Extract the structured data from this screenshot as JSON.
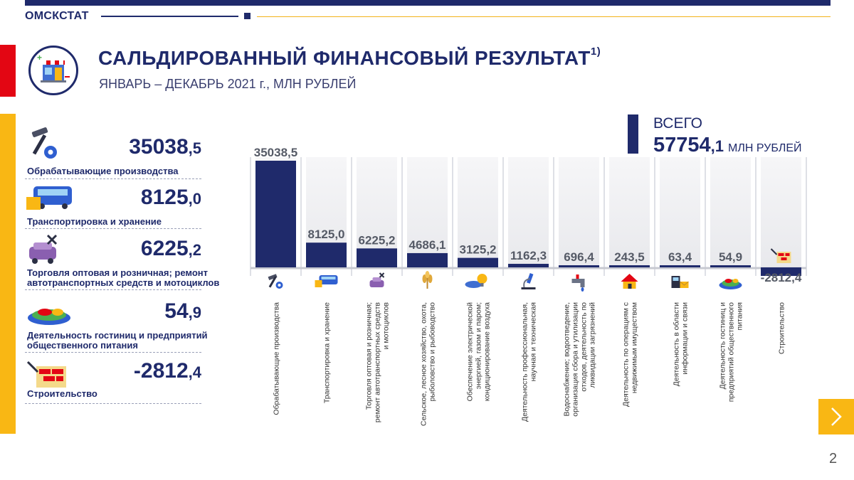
{
  "header": {
    "brand": "ОМСКСТАТ",
    "title": "САЛЬДИРОВАННЫЙ ФИНАНСОВЫЙ РЕЗУЛЬТАТ",
    "title_sup": "1)",
    "subtitle": "ЯНВАРЬ – ДЕКАБРЬ 2021 г., МЛН РУБЛЕЙ"
  },
  "colors": {
    "navy": "#1f2a6b",
    "gold": "#f9b714",
    "red": "#e30613"
  },
  "highlights": [
    {
      "int": "35038",
      "dec": ",5",
      "label": "Обрабатывающие производства",
      "icon": "hammer-gear-icon"
    },
    {
      "int": "8125",
      "dec": ",0",
      "label": "Транспортировка и хранение",
      "icon": "bus-box-icon"
    },
    {
      "int": "6225",
      "dec": ",2",
      "label": "Торговля оптовая и розничная; ремонт автотранспортных средств и мотоциклов",
      "icon": "car-tools-icon"
    },
    {
      "int": "54",
      "dec": ",9",
      "label": "Деятельность гостиниц и предприятий общественного питания",
      "icon": "food-plate-icon"
    },
    {
      "int": "-2812",
      "dec": ",4",
      "label": "Строительство",
      "icon": "bricks-trowel-icon"
    }
  ],
  "total": {
    "label": "ВСЕГО",
    "int": "57754",
    "dec": ",1",
    "unit": "МЛН РУБЛЕЙ"
  },
  "chart_data": {
    "type": "bar",
    "categories": [
      "Обрабатывающие производства",
      "Транспортировка и хранение",
      "Торговля оптовая и розничная; ремонт автотранспортных средств и мотоциклов",
      "Сельское, лесное хозяйство, охота, рыболовство и рыбоводство",
      "Обеспечение электрической энергией, газом и паром; кондиционирование воздуха",
      "Деятельность профессиональная, научная и техническая",
      "Водоснабжение; водоотведение, организация сбора и утилизации отходов, деятельность по ликвидации загрязнений",
      "Деятельность по операциям с недвижимым имуществом",
      "Деятельность в области информации и связи",
      "Деятельность гостиниц и предприятий общественного питания",
      "Строительство"
    ],
    "category_lines": [
      [
        "Обрабатывающие производства"
      ],
      [
        "Транспортировка и хранение"
      ],
      [
        "Торговля оптовая и розничная;",
        "ремонт автотранспортных средств",
        "и мотоциклов"
      ],
      [
        "Сельское, лесное хозяйство, охота,",
        "рыболовство и рыбоводство"
      ],
      [
        "Обеспечение электрической",
        "энергией, газом и паром;",
        "кондиционирование воздуха"
      ],
      [
        "Деятельность профессиональная,",
        "научная и техническая"
      ],
      [
        "Водоснабжение; водоотведение,",
        "организация сбора и утилизации",
        "отходов, деятельность по",
        "ликвидации загрязнений"
      ],
      [
        "Деятельность по операциям с",
        "недвижимым имуществом"
      ],
      [
        "Деятельность в области",
        "информации и связи"
      ],
      [
        "Деятельность гостиниц и",
        "предприятий общественного",
        "питания"
      ],
      [
        "Строительство"
      ]
    ],
    "values": [
      35038.5,
      8125.0,
      6225.2,
      4686.1,
      3125.2,
      1162.3,
      696.4,
      243.5,
      63.4,
      54.9,
      -2812.4
    ],
    "value_labels": [
      "35038,5",
      "8125,0",
      "6225,2",
      "4686,1",
      "3125,2",
      "1162,3",
      "696,4",
      "243,5",
      "63,4",
      "54,9",
      "-2812,4"
    ],
    "icons": [
      "hammer-gear-icon",
      "bus-box-icon",
      "car-tools-icon",
      "wheat-icon",
      "power-bulb-icon",
      "microscope-icon",
      "water-tap-icon",
      "house-icon",
      "phone-mail-icon",
      "food-plate-icon",
      "bricks-trowel-icon"
    ],
    "units": "млн рублей",
    "ylim": [
      -2812.4,
      35038.5
    ],
    "grid": false,
    "legend": "none"
  }
}
